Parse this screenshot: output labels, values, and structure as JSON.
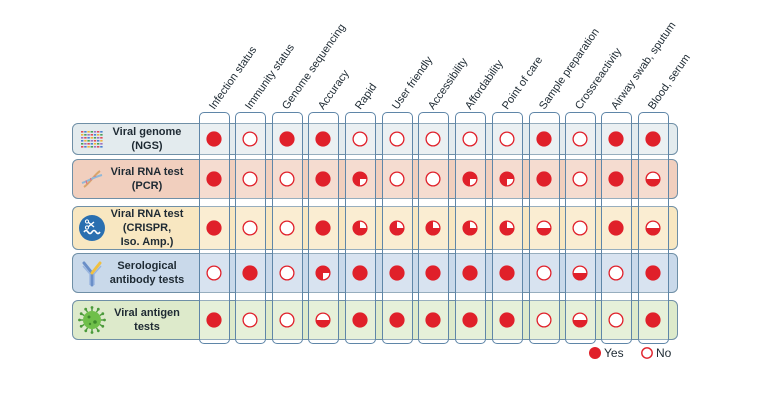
{
  "columns": [
    "Infection status",
    "Immunity status",
    "Genome sequencing",
    "Accuracy",
    "Rapid",
    "User friendly",
    "Accessibility",
    "Affordability",
    "Point of care",
    "Sample preparation",
    "Crossreactivity",
    "Airway swab, sputum",
    "Blood, serum"
  ],
  "rows": [
    {
      "id": "viral-genome",
      "label_lines": [
        "Viral genome",
        "(NGS)"
      ],
      "icon": "dna-sequence-icon",
      "band_color": "#e3ebee",
      "values": [
        "yes",
        "no",
        "yes",
        "yes",
        "no",
        "no",
        "no",
        "no",
        "no",
        "yes",
        "no",
        "yes",
        "yes"
      ]
    },
    {
      "id": "viral-rna-pcr",
      "label_lines": [
        "Viral RNA test",
        "(PCR)"
      ],
      "icon": "dna-helix-icon",
      "band_color": "#f1cfbe",
      "values": [
        "yes",
        "no",
        "no",
        "yes",
        "quarter",
        "no",
        "no",
        "quarter",
        "quarter",
        "yes",
        "no",
        "yes",
        "half"
      ]
    },
    {
      "id": "viral-rna-crispr",
      "label_lines": [
        "Viral RNA test",
        "(CRISPR,",
        "Iso. Amp.)"
      ],
      "icon": "crispr-scissors-icon",
      "band_color": "#f8e7c1",
      "values": [
        "yes",
        "no",
        "no",
        "yes",
        "three-quarter",
        "three-quarter",
        "three-quarter",
        "three-quarter",
        "three-quarter",
        "half",
        "no",
        "yes",
        "half"
      ]
    },
    {
      "id": "serological",
      "label_lines": [
        "Serological",
        "antibody tests"
      ],
      "icon": "antibody-icon",
      "band_color": "#c9d9ea",
      "values": [
        "no",
        "yes",
        "no",
        "quarter",
        "yes",
        "yes",
        "yes",
        "yes",
        "yes",
        "no",
        "half",
        "no",
        "yes"
      ]
    },
    {
      "id": "viral-antigen",
      "label_lines": [
        "Viral antigen",
        "tests"
      ],
      "icon": "virus-icon",
      "band_color": "#ddeacb",
      "values": [
        "yes",
        "no",
        "no",
        "half",
        "yes",
        "yes",
        "yes",
        "yes",
        "yes",
        "no",
        "half",
        "no",
        "yes"
      ]
    }
  ],
  "legend": [
    {
      "label": "Yes",
      "symbol": "filled-circle"
    },
    {
      "label": "No",
      "symbol": "open-circle"
    }
  ],
  "colors": {
    "marker_red": "#e0202a",
    "row_border": "#6f8fa6",
    "column_border": "#5f86a8"
  }
}
